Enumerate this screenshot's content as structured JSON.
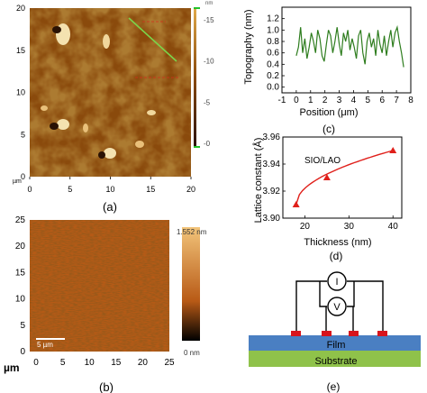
{
  "panels": {
    "a": {
      "label": "(a)",
      "x_unit": "µm",
      "x_ticks": [
        "0",
        "5",
        "10",
        "15",
        "20"
      ],
      "y_ticks": [
        "0",
        "5",
        "10",
        "15",
        "20"
      ],
      "colorbar_unit": "nm",
      "colorbar_ticks": [
        "-15",
        "-10",
        "-5",
        "-0"
      ],
      "colors": {
        "dark": "#2a1204",
        "mid": "#8a4a0c",
        "light": "#e0a94a"
      }
    },
    "b": {
      "label": "(b)",
      "x_unit": "µm",
      "x_ticks": [
        "0",
        "5",
        "10",
        "15",
        "20",
        "25"
      ],
      "y_ticks": [
        "0",
        "5",
        "10",
        "15",
        "20",
        "25"
      ],
      "scalebar": "5 µm",
      "colorbar_top": "1.552 nm",
      "colorbar_bottom": "0 nm",
      "colors": {
        "dark": "#3a1204",
        "mid": "#b85a16",
        "light": "#f2c47a"
      }
    },
    "c": {
      "label": "(c)",
      "chart_data": {
        "type": "line",
        "xlabel": "Position (μm)",
        "ylabel": "Topography (nm)",
        "xlim": [
          -1,
          8
        ],
        "ylim": [
          -0.1,
          1.4
        ],
        "x_ticks": [
          "-1",
          "0",
          "1",
          "2",
          "3",
          "4",
          "5",
          "6",
          "7",
          "8"
        ],
        "y_ticks": [
          "0.0",
          "0.2",
          "0.4",
          "0.6",
          "0.8",
          "1.0",
          "1.2"
        ],
        "series": [
          {
            "color": "#2e7d1e",
            "x": [
              0.0,
              0.15,
              0.3,
              0.45,
              0.6,
              0.75,
              0.9,
              1.05,
              1.2,
              1.35,
              1.5,
              1.65,
              1.8,
              1.95,
              2.1,
              2.25,
              2.4,
              2.55,
              2.7,
              2.85,
              3.0,
              3.15,
              3.3,
              3.45,
              3.6,
              3.75,
              3.9,
              4.05,
              4.2,
              4.35,
              4.5,
              4.65,
              4.8,
              4.95,
              5.1,
              5.25,
              5.4,
              5.55,
              5.7,
              5.85,
              6.0,
              6.15,
              6.3,
              6.45,
              6.6,
              6.75,
              6.9,
              7.05,
              7.2,
              7.35,
              7.5
            ],
            "y": [
              0.55,
              0.7,
              1.05,
              0.6,
              0.85,
              0.5,
              0.7,
              0.95,
              0.8,
              0.6,
              1.0,
              0.85,
              0.55,
              0.45,
              0.75,
              1.0,
              0.9,
              0.6,
              0.8,
              1.05,
              0.75,
              0.55,
              0.95,
              0.8,
              1.0,
              0.65,
              0.85,
              0.7,
              0.5,
              0.9,
              1.0,
              0.6,
              0.4,
              0.8,
              0.95,
              0.7,
              0.85,
              0.55,
              1.0,
              0.75,
              0.6,
              0.9,
              0.55,
              0.8,
              1.0,
              0.7,
              0.95,
              1.05,
              0.8,
              0.6,
              0.35
            ]
          }
        ]
      }
    },
    "d": {
      "label": "(d)",
      "chart_data": {
        "type": "scatter",
        "xlabel": "Thickness (nm)",
        "ylabel": "Lattice constant (Å)",
        "xlim": [
          15,
          42
        ],
        "ylim": [
          3.9,
          3.96
        ],
        "x_ticks": [
          "20",
          "30",
          "40"
        ],
        "y_ticks": [
          "3.90",
          "3.92",
          "3.94",
          "3.96"
        ],
        "annotation": "SIO/LAO",
        "series": [
          {
            "color": "#e0201b",
            "x": [
              18,
              25,
              40
            ],
            "y": [
              3.91,
              3.93,
              3.95
            ]
          }
        ]
      }
    },
    "e": {
      "label": "(e)",
      "meter_current": "I",
      "meter_voltage": "V",
      "film_label": "Film",
      "substrate_label": "Substrate",
      "colors": {
        "film": "#4a7fc2",
        "substrate": "#8fc24a",
        "contact": "#d8141c"
      }
    }
  }
}
